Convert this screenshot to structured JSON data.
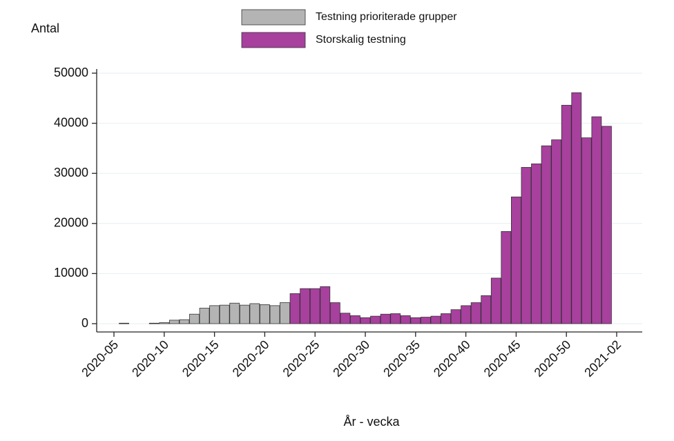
{
  "chart_data": {
    "type": "bar",
    "stacked": false,
    "y_label": "Antal",
    "x_label": "År - vecka",
    "categories": [
      "2020-05",
      null,
      null,
      null,
      null,
      "2020-10",
      null,
      null,
      null,
      null,
      "2020-15",
      null,
      null,
      null,
      null,
      "2020-20",
      null,
      null,
      null,
      null,
      "2020-25",
      null,
      null,
      null,
      null,
      "2020-30",
      null,
      null,
      null,
      null,
      "2020-35",
      null,
      null,
      null,
      null,
      "2020-40",
      null,
      null,
      null,
      null,
      "2020-45",
      null,
      null,
      null,
      null,
      "2020-50",
      null,
      null,
      null,
      null,
      "2021-02"
    ],
    "series": [
      {
        "name": "Testning prioriterade grupper",
        "color": "#b4b4b4",
        "values": [
          null,
          100,
          null,
          null,
          100,
          200,
          700,
          800,
          1900,
          3100,
          3600,
          3700,
          4100,
          3700,
          4000,
          3800,
          3600,
          4200,
          null,
          null,
          null,
          null,
          null,
          null,
          null,
          null,
          null,
          null,
          null,
          null,
          null,
          null,
          null,
          null,
          null,
          null,
          null,
          null,
          null,
          null,
          null,
          null,
          null,
          null,
          null,
          null,
          null,
          null,
          null,
          null,
          null
        ]
      },
      {
        "name": "Storskalig testning",
        "color": "#a8409e",
        "values": [
          null,
          null,
          null,
          null,
          null,
          null,
          null,
          null,
          null,
          null,
          null,
          null,
          null,
          null,
          null,
          null,
          null,
          null,
          6000,
          7000,
          7000,
          7400,
          4200,
          2100,
          1600,
          1200,
          1500,
          1900,
          2000,
          1600,
          1200,
          1300,
          1500,
          2000,
          2800,
          3600,
          4200,
          5600,
          9100,
          18400,
          25300,
          31200,
          31900,
          35500,
          36700,
          43600,
          46100,
          37100,
          41300,
          39400,
          null
        ]
      }
    ],
    "ylim": [
      0,
      50000
    ],
    "yticks": [
      0,
      10000,
      20000,
      30000,
      40000,
      50000
    ],
    "grid": true
  }
}
